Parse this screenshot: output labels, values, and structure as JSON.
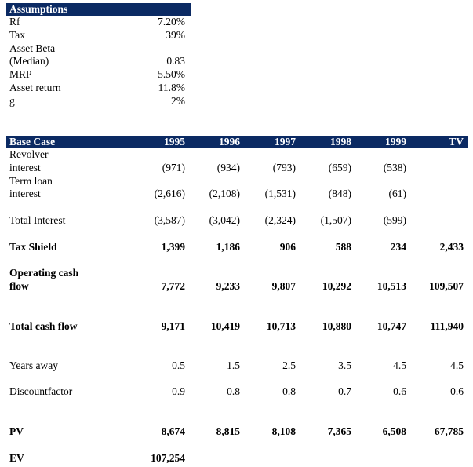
{
  "assumptions": {
    "title": "Assumptions",
    "items": [
      {
        "label": "Rf",
        "value": "7.20%"
      },
      {
        "label": "Tax",
        "value": "39%"
      },
      {
        "label": "Asset Beta",
        "value": ""
      },
      {
        "label": "(Median)",
        "value": "0.83"
      },
      {
        "label": "MRP",
        "value": "5.50%"
      },
      {
        "label": "Asset return",
        "value": "11.8%"
      },
      {
        "label": "g",
        "value": "2%"
      }
    ]
  },
  "base_case": {
    "title": "Base Case",
    "years": [
      "1995",
      "1996",
      "1997",
      "1998",
      "1999",
      "TV"
    ],
    "rows": [
      {
        "label1": "Revolver",
        "label2": "interest",
        "values": [
          "(971)",
          "(934)",
          "(793)",
          "(659)",
          "(538)",
          ""
        ],
        "bold": false
      },
      {
        "label1": "Term loan",
        "label2": "interest",
        "values": [
          "(2,616)",
          "(2,108)",
          "(1,531)",
          "(848)",
          "(61)",
          ""
        ],
        "bold": false
      },
      {
        "label1": "",
        "label2": "Total Interest",
        "values": [
          "(3,587)",
          "(3,042)",
          "(2,324)",
          "(1,507)",
          "(599)",
          ""
        ],
        "bold": false
      },
      {
        "label1": "",
        "label2": "Tax Shield",
        "values": [
          "1,399",
          "1,186",
          "906",
          "588",
          "234",
          "2,433"
        ],
        "bold": true
      },
      {
        "label1": "Operating cash",
        "label2": "flow",
        "values": [
          "7,772",
          "9,233",
          "9,807",
          "10,292",
          "10,513",
          "109,507"
        ],
        "bold": true
      },
      {
        "label1": "",
        "label2": "Total cash flow",
        "values": [
          "9,171",
          "10,419",
          "10,713",
          "10,880",
          "10,747",
          "111,940"
        ],
        "bold": true
      },
      {
        "label1": "",
        "label2": "Years away",
        "values": [
          "0.5",
          "1.5",
          "2.5",
          "3.5",
          "4.5",
          "4.5"
        ],
        "bold": false
      },
      {
        "label1": "",
        "label2": "Discountfactor",
        "values": [
          "0.9",
          "0.8",
          "0.8",
          "0.7",
          "0.6",
          "0.6"
        ],
        "bold": false
      },
      {
        "label1": "",
        "label2": "PV",
        "values": [
          "8,674",
          "8,815",
          "8,108",
          "7,365",
          "6,508",
          "67,785"
        ],
        "bold": true
      },
      {
        "label1": "",
        "label2": "EV",
        "values": [
          "107,254",
          "",
          "",
          "",
          "",
          ""
        ],
        "bold": true
      }
    ]
  }
}
